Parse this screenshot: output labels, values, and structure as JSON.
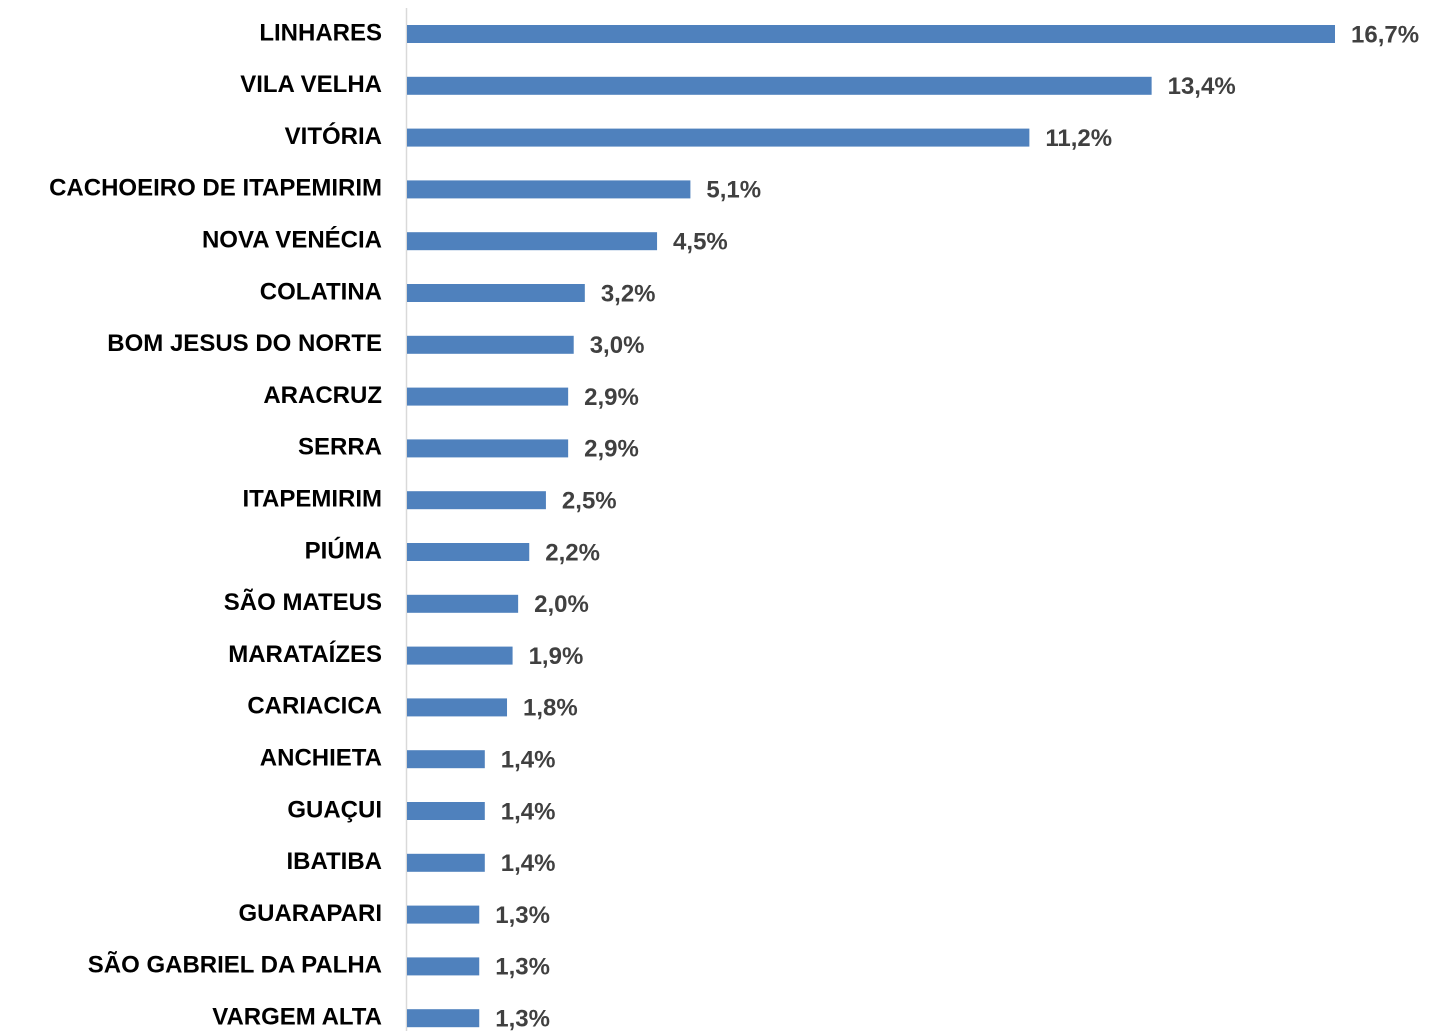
{
  "chart_data": {
    "type": "bar",
    "orientation": "horizontal",
    "color": "#4f81bd",
    "categories": [
      "LINHARES",
      "VILA VELHA",
      "VITÓRIA",
      "CACHOEIRO DE ITAPEMIRIM",
      "NOVA VENÉCIA",
      "COLATINA",
      "BOM JESUS DO NORTE",
      "ARACRUZ",
      "SERRA",
      "ITAPEMIRIM",
      "PIÚMA",
      "SÃO MATEUS",
      "MARATAÍZES",
      "CARIACICA",
      "ANCHIETA",
      "GUAÇUI",
      "IBATIBA",
      "GUARAPARI",
      "SÃO GABRIEL DA PALHA",
      "VARGEM ALTA"
    ],
    "values": [
      16.7,
      13.4,
      11.2,
      5.1,
      4.5,
      3.2,
      3.0,
      2.9,
      2.9,
      2.5,
      2.2,
      2.0,
      1.9,
      1.8,
      1.4,
      1.4,
      1.4,
      1.3,
      1.3,
      1.3
    ],
    "value_labels": [
      "16,7%",
      "13,4%",
      "11,2%",
      "5,1%",
      "4,5%",
      "3,2%",
      "3,0%",
      "2,9%",
      "2,9%",
      "2,5%",
      "2,2%",
      "2,0%",
      "1,9%",
      "1,8%",
      "1,4%",
      "1,4%",
      "1,4%",
      "1,3%",
      "1,3%",
      "1,3%"
    ]
  }
}
